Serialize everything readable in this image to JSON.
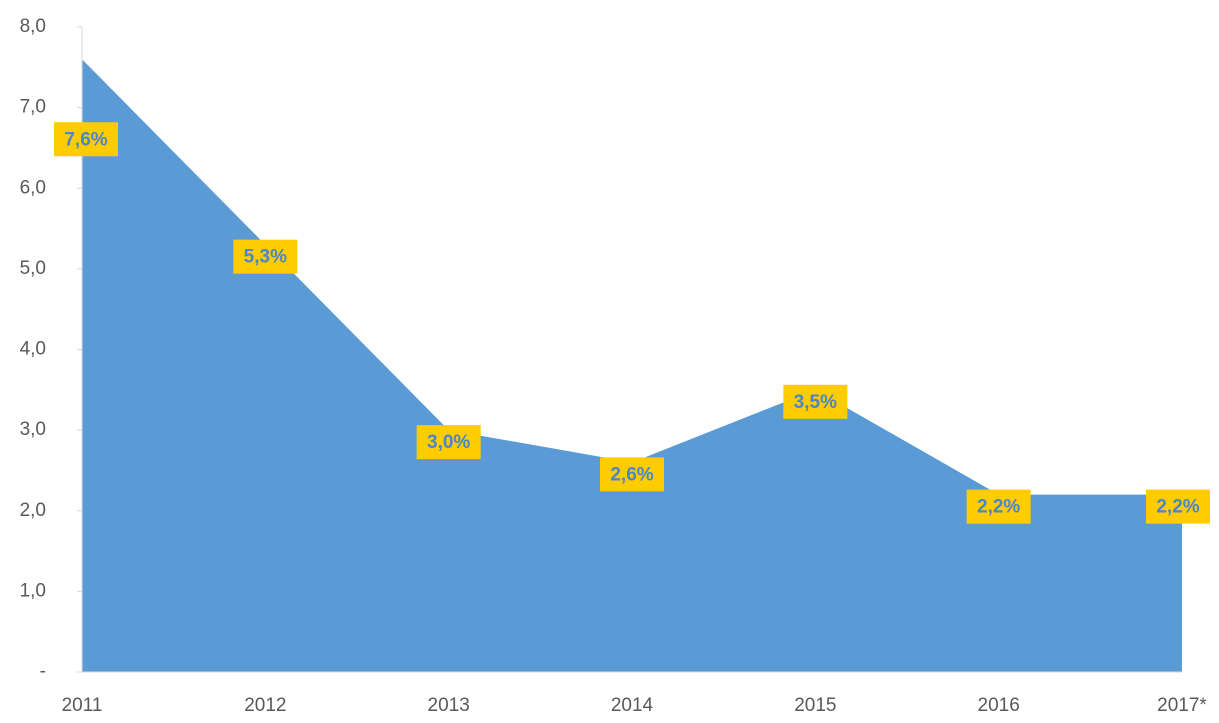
{
  "chart_data": {
    "type": "area",
    "categories": [
      "2011",
      "2012",
      "2013",
      "2014",
      "2015",
      "2016",
      "2017*"
    ],
    "values": [
      7.6,
      5.3,
      3.0,
      2.6,
      3.5,
      2.2,
      2.2
    ],
    "value_labels": [
      "7,6%",
      "5,3%",
      "3,0%",
      "2,6%",
      "3,5%",
      "2,2%",
      "2,2%"
    ],
    "color": "#5b9bd5",
    "label_box_color": "#ffcc00",
    "label_text_color": "#4a86c8",
    "ylim": [
      0,
      8
    ],
    "yticks": [
      {
        "value": 0,
        "label": "-"
      },
      {
        "value": 1,
        "label": "1,0"
      },
      {
        "value": 2,
        "label": "2,0"
      },
      {
        "value": 3,
        "label": "3,0"
      },
      {
        "value": 4,
        "label": "4,0"
      },
      {
        "value": 5,
        "label": "5,0"
      },
      {
        "value": 6,
        "label": "6,0"
      },
      {
        "value": 7,
        "label": "7,0"
      },
      {
        "value": 8,
        "label": "8,0"
      }
    ],
    "grid": false
  }
}
